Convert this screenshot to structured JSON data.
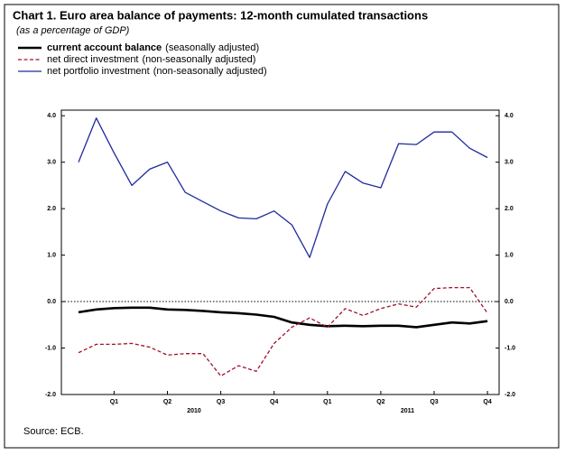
{
  "chart_data": {
    "type": "line",
    "title": "Chart 1. Euro area balance of payments: 12-month cumulated transactions",
    "subtitle": "(as a percentage of GDP)",
    "source": "Source: ECB.",
    "categories": [
      null,
      null,
      "Q1",
      null,
      null,
      "Q2",
      null,
      null,
      "Q3",
      null,
      null,
      "Q4",
      null,
      null,
      "Q1",
      null,
      null,
      "Q2",
      null,
      null,
      "Q3",
      null,
      null,
      "Q4"
    ],
    "years": [
      "2010",
      "2011"
    ],
    "series": [
      {
        "name": "current account balance",
        "qualifier": "(seasonally adjusted)",
        "color": "#000000",
        "style": "solid-thick",
        "values": [
          -0.23,
          -0.17,
          -0.14,
          -0.13,
          -0.13,
          -0.17,
          -0.18,
          -0.2,
          -0.23,
          -0.25,
          -0.28,
          -0.33,
          -0.45,
          -0.5,
          -0.53,
          -0.52,
          -0.53,
          -0.52,
          -0.52,
          -0.55,
          -0.5,
          -0.45,
          -0.47,
          -0.42
        ]
      },
      {
        "name": "net direct investment",
        "qualifier": "(non-seasonally adjusted)",
        "color": "#a0102a",
        "style": "dashed",
        "values": [
          -1.1,
          -0.92,
          -0.92,
          -0.9,
          -0.98,
          -1.15,
          -1.12,
          -1.12,
          -1.6,
          -1.38,
          -1.5,
          -0.9,
          -0.55,
          -0.35,
          -0.55,
          -0.15,
          -0.3,
          -0.15,
          -0.05,
          -0.12,
          0.28,
          0.3,
          0.3,
          -0.25
        ]
      },
      {
        "name": "net portfolio investment",
        "qualifier": "(non-seasonally adjusted)",
        "color": "#1f2a9c",
        "style": "solid",
        "values": [
          3.0,
          3.95,
          3.2,
          2.5,
          2.85,
          3.0,
          2.35,
          2.15,
          1.95,
          1.8,
          1.78,
          1.95,
          1.65,
          0.95,
          2.1,
          2.8,
          2.55,
          2.45,
          3.4,
          3.38,
          3.65,
          3.65,
          3.3,
          3.1
        ]
      }
    ],
    "ylim": [
      -2,
      4.12
    ],
    "yticks": [
      {
        "value": -2,
        "label": "-2.0"
      },
      {
        "value": -1,
        "label": "-1.0"
      },
      {
        "value": 0,
        "label": "0.0"
      },
      {
        "value": 1,
        "label": "1.0"
      },
      {
        "value": 2,
        "label": "2.0"
      },
      {
        "value": 3,
        "label": "3.0"
      },
      {
        "value": 4,
        "label": "4.0"
      }
    ],
    "y2lim": [
      -2,
      4.12
    ],
    "y2ticks": [
      {
        "value": -2,
        "label": "-2.0"
      },
      {
        "value": -1,
        "label": "-1.0"
      },
      {
        "value": 0,
        "label": "0.0"
      },
      {
        "value": 1,
        "label": "1.0"
      },
      {
        "value": 2,
        "label": "2.0"
      },
      {
        "value": 3,
        "label": "3.0"
      },
      {
        "value": 4,
        "label": "4.0"
      }
    ],
    "zero_line": true
  }
}
